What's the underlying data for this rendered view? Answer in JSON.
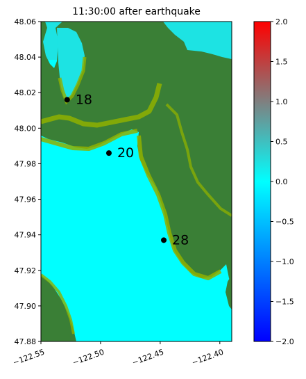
{
  "title": "11:30:00 after earthquake",
  "map": {
    "lon_range": [
      -122.55,
      -122.39
    ],
    "lat_range": [
      47.88,
      48.06
    ],
    "x_ticks": [
      {
        "value": -122.55,
        "label": "−122.55"
      },
      {
        "value": -122.5,
        "label": "−122.50"
      },
      {
        "value": -122.45,
        "label": "−122.45"
      },
      {
        "value": -122.4,
        "label": "−122.40"
      }
    ],
    "y_ticks": [
      {
        "value": 47.88,
        "label": "47.88"
      },
      {
        "value": 47.9,
        "label": "47.90"
      },
      {
        "value": 47.92,
        "label": "47.92"
      },
      {
        "value": 47.94,
        "label": "47.94"
      },
      {
        "value": 47.96,
        "label": "47.96"
      },
      {
        "value": 47.98,
        "label": "47.98"
      },
      {
        "value": 48.0,
        "label": "48.00"
      },
      {
        "value": 48.02,
        "label": "48.02"
      },
      {
        "value": 48.04,
        "label": "48.04"
      },
      {
        "value": 48.06,
        "label": "48.06"
      }
    ],
    "gauges": [
      {
        "id": "18",
        "lon": -122.528,
        "lat": 48.016
      },
      {
        "id": "20",
        "lon": -122.493,
        "lat": 47.986
      },
      {
        "id": "28",
        "lon": -122.447,
        "lat": 47.937
      }
    ],
    "colors": {
      "water": "#00ffff",
      "land": "#3a7f36",
      "shore": "#8fb000",
      "raised_water": "#1de3e3"
    }
  },
  "colorbar": {
    "min": -2.0,
    "max": 2.0,
    "colors": [
      "#0000ff",
      "#00ffff",
      "#ff0000"
    ],
    "ticks": [
      {
        "value": 2.0,
        "label": "2.0"
      },
      {
        "value": 1.5,
        "label": "1.5"
      },
      {
        "value": 1.0,
        "label": "1.0"
      },
      {
        "value": 0.5,
        "label": "0.5"
      },
      {
        "value": 0.0,
        "label": "0.0"
      },
      {
        "value": -0.5,
        "label": "−0.5"
      },
      {
        "value": -1.0,
        "label": "−1.0"
      },
      {
        "value": -1.5,
        "label": "−1.5"
      },
      {
        "value": -2.0,
        "label": "−2.0"
      }
    ]
  }
}
